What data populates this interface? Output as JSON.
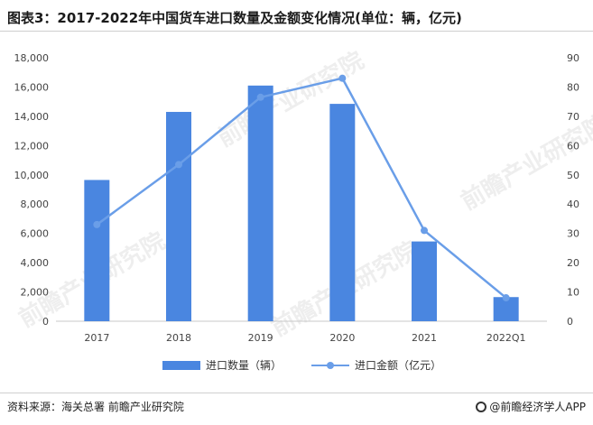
{
  "header": {
    "title": "图表3：2017-2022年中国货车进口数量及金额变化情况(单位：辆，亿元)"
  },
  "footer": {
    "source": "资料来源：海关总署 前瞻产业研究院",
    "brand": "@前瞻经济学人APP"
  },
  "watermark": {
    "text": "前瞻产业研究院"
  },
  "chart_data": {
    "type": "bar",
    "categories": [
      "2017",
      "2018",
      "2019",
      "2020",
      "2021",
      "2022Q1"
    ],
    "y_left": {
      "min": 0,
      "max": 18000,
      "step": 2000,
      "ticks": [
        "0",
        "2,000",
        "4,000",
        "6,000",
        "8,000",
        "10,000",
        "12,000",
        "14,000",
        "16,000",
        "18,000"
      ]
    },
    "y_right": {
      "min": 0,
      "max": 90,
      "step": 10,
      "ticks": [
        "0",
        "10",
        "20",
        "30",
        "40",
        "50",
        "60",
        "70",
        "80",
        "90"
      ]
    },
    "series": [
      {
        "name": "进口数量（辆）",
        "type": "bar",
        "axis": "left",
        "values": [
          9650,
          14300,
          16100,
          14850,
          5450,
          1650
        ],
        "color": "#4a86e0"
      },
      {
        "name": "进口金额（亿元）",
        "type": "line",
        "axis": "right",
        "values": [
          33,
          53.5,
          76.5,
          83,
          31,
          8
        ],
        "color": "#6a9ee8"
      }
    ],
    "grid": false,
    "legend_position": "bottom"
  }
}
